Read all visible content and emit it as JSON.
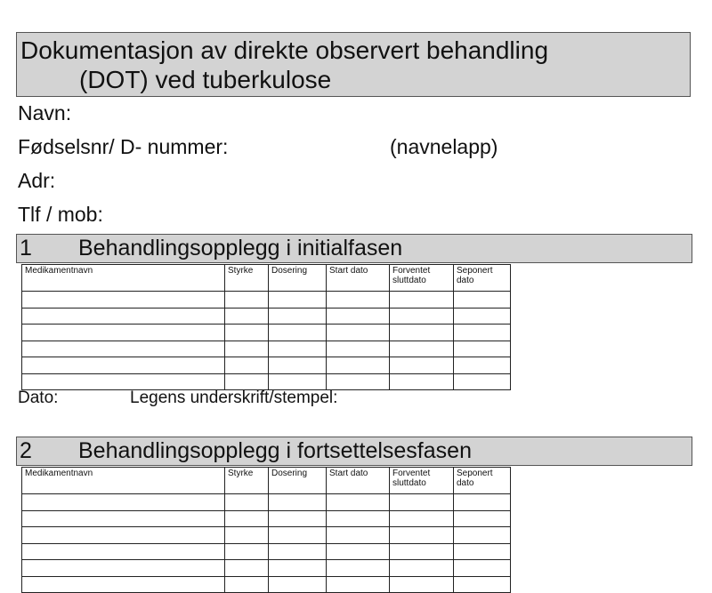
{
  "title": {
    "line1": "Dokumentasjon av direkte observert behandling",
    "line2": "(DOT) ved tuberkulose"
  },
  "fields": {
    "navn": "Navn:",
    "fodselsnr": "Fødselsnr/ D- nummer:",
    "navnelapp": "(navnelapp)",
    "adr": "Adr:",
    "tlf": "Tlf / mob:"
  },
  "sections": [
    {
      "number": "1",
      "title": "Behandlingsopplegg i initialfasen"
    },
    {
      "number": "2",
      "title": "Behandlingsopplegg i fortsettelsesfasen"
    }
  ],
  "table": {
    "columns": [
      "Medikamentnavn",
      "Styrke",
      "Dosering",
      "Start dato",
      "Forventet sluttdato",
      "Seponert dato"
    ]
  },
  "signature": {
    "dato": "Dato:",
    "legens": "Legens underskrift/stempel:"
  }
}
